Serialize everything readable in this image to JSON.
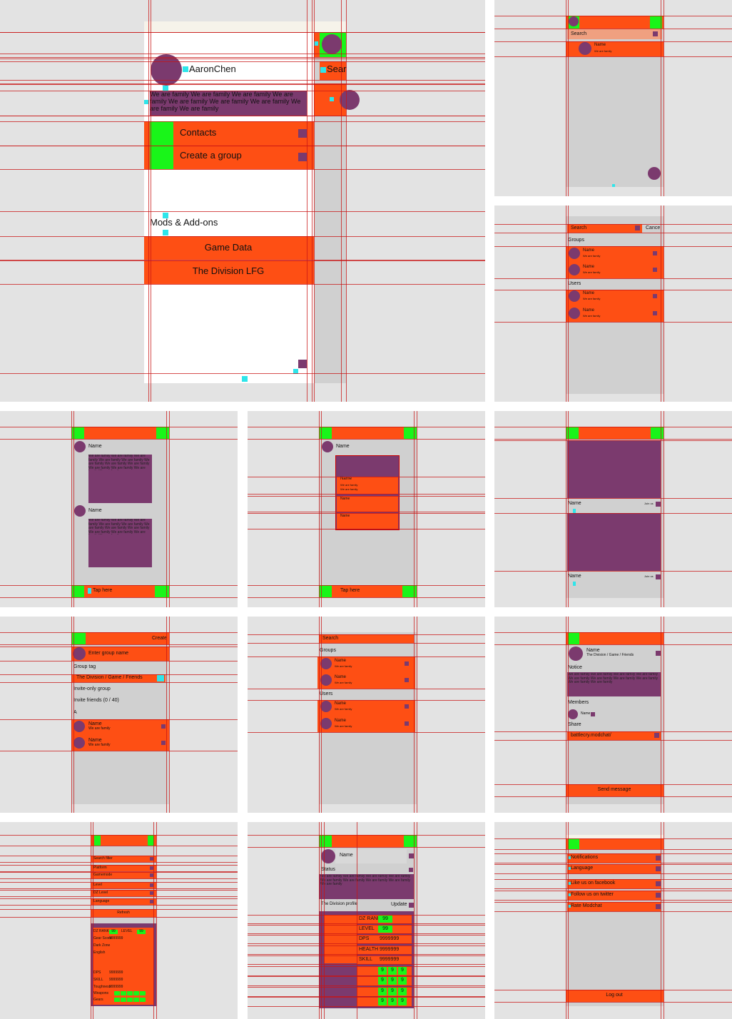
{
  "p1": {
    "user": "AaronChen",
    "bio": "We are family We are family We are family We are family We are family We are family We are family We are family We are family",
    "menu": [
      "Contacts",
      "Create a group"
    ],
    "section": "Mods & Add-ons",
    "mods": [
      "Game Data",
      "The Division LFG"
    ],
    "side_search": "Sear"
  },
  "p2": {
    "search": "Search",
    "name": "Name",
    "status": "We are family"
  },
  "p3": {
    "search": "Search",
    "cancel": "Cance",
    "groups": "Groups",
    "group_items": [
      {
        "name": "Name",
        "status": "We are family"
      },
      {
        "name": "Name",
        "status": "We are family"
      }
    ],
    "users": "Users",
    "user_items": [
      {
        "name": "Name",
        "status": "We are family"
      },
      {
        "name": "Name",
        "status": "We are family"
      }
    ]
  },
  "p4": {
    "posts": [
      {
        "name": "Name",
        "text": "We are family We are family We are family We are family We are family We are family We are family We are family We are family We are family We are family We are family"
      },
      {
        "name": "Name",
        "text": "We are family We are family We are family We are family We are family We are family We are family We are family We are family We are family We are family We are family"
      }
    ],
    "action": "Tap here"
  },
  "p5": {
    "name": "Name",
    "item_names": [
      "Name",
      "Name",
      "Name"
    ],
    "item_status": [
      "We are family",
      "We are family"
    ],
    "action": "Tap here"
  },
  "p6": {
    "cards": [
      {
        "name": "Name",
        "action": "Join us"
      },
      {
        "name": "Name",
        "action": "Join us"
      }
    ]
  },
  "p7": {
    "action": "Create",
    "name_field": "Enter group name",
    "tag_label": "Group tag",
    "tag": "The Division / Game / Friends",
    "invite_only": "Invite-only group",
    "invite": "Invite friends (0 / 40)",
    "index": "A",
    "members": [
      {
        "name": "Name",
        "status": "We are family"
      },
      {
        "name": "Name",
        "status": "We are family"
      }
    ]
  },
  "p8": {
    "search": "Search",
    "groups": "Groups",
    "group_items": [
      {
        "name": "Name",
        "status": "We are family"
      },
      {
        "name": "Name",
        "status": "We are family"
      }
    ],
    "users": "Users",
    "user_items": [
      {
        "name": "Name",
        "status": "We are family"
      },
      {
        "name": "Name",
        "status": "We are family"
      }
    ]
  },
  "p9": {
    "name": "Name",
    "tag": "The Division / Game / Friends",
    "notice_label": "Notice",
    "notice": "We are family We are family We are family We are family We are family We are family We are family We are family We are family We are family",
    "members_label": "Members",
    "member": "Name",
    "share_label": "Share",
    "link": "battlecry.modchat/",
    "send": "Send message"
  },
  "p10": {
    "filters": [
      "Search filter",
      "Platform",
      "Gamemode",
      "Level",
      "DZ Level",
      "Language"
    ],
    "refresh": "Refresh",
    "stats": [
      {
        "label": "DZ RANK",
        "value": "99"
      },
      {
        "label": "LEVEL",
        "value": "99"
      },
      {
        "label": "Gear Score",
        "value": "9999999"
      },
      {
        "label": "Dark Zone"
      },
      {
        "label": "English"
      },
      {
        "label": "DPS",
        "value": "9999999"
      },
      {
        "label": "SKILL",
        "value": "9999999"
      },
      {
        "label": "Toughness",
        "value": "9999999"
      },
      {
        "label": "Weapons"
      },
      {
        "label": "Gears"
      }
    ]
  },
  "p11": {
    "name": "Name",
    "status_label": "Status",
    "status": "We are family We are family We are family We are family We are family We are family We are family We are family We are family",
    "profile": "The Division profile",
    "update": "Update",
    "stats": [
      {
        "label": "DZ RANK",
        "value": "99"
      },
      {
        "label": "LEVEL",
        "value": "99"
      },
      {
        "label": "DPS",
        "value": "9999999"
      },
      {
        "label": "HEALTH",
        "value": "9999999"
      },
      {
        "label": "SKILL",
        "value": "9999999"
      }
    ],
    "weapons": "Weapons",
    "weapon_slots": [
      "9",
      "9",
      "9",
      "9",
      "9",
      "9"
    ],
    "gears": "Gears",
    "gear_slots": [
      "9",
      "9",
      "9",
      "9",
      "9",
      "9"
    ]
  },
  "p12": {
    "settings": [
      "Notifications",
      "Language",
      "Like us on facebook",
      "Follow us on twitter",
      "Rate Modchat"
    ],
    "logout": "Log out"
  }
}
